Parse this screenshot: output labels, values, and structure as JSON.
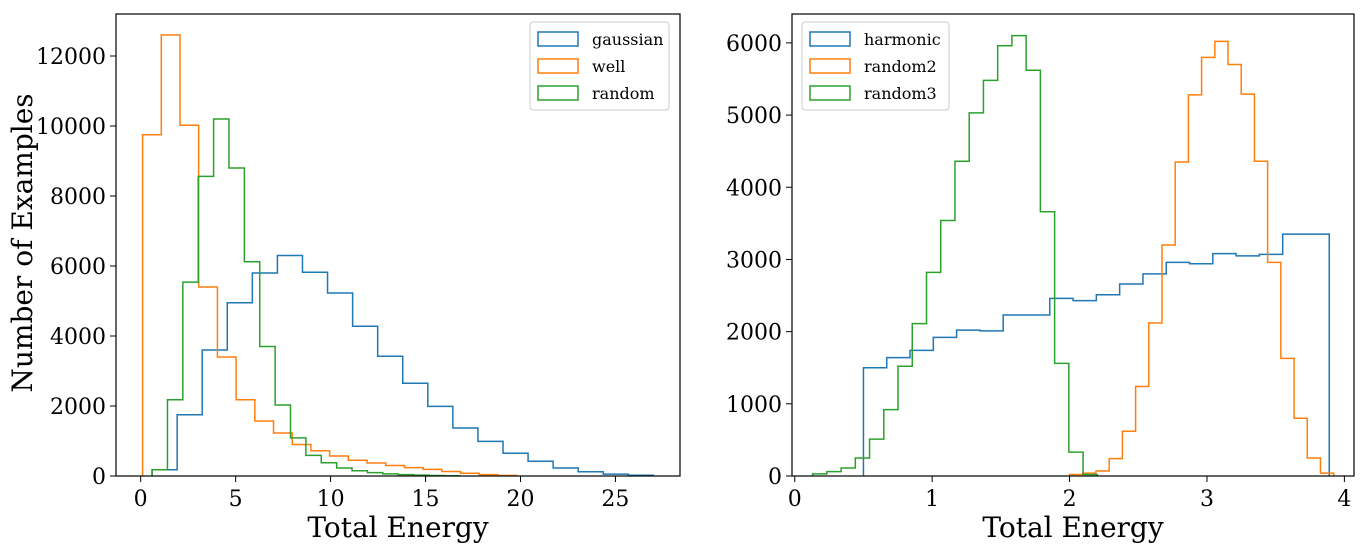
{
  "chart_data": [
    {
      "type": "histogram",
      "xlabel": "Total Energy",
      "ylabel": "Number of Examples",
      "xlim": [
        -1.3,
        28.4
      ],
      "ylim": [
        0,
        13200
      ],
      "xticks": [
        0,
        5,
        10,
        15,
        20,
        25
      ],
      "yticks": [
        0,
        2000,
        4000,
        6000,
        8000,
        10000,
        12000
      ],
      "legend_position": "upper right",
      "series": [
        {
          "name": "gaussian",
          "color": "#1f77b4",
          "bin_start": 0.6,
          "bin_width": 1.32,
          "counts": [
            180,
            1750,
            3600,
            4950,
            5800,
            6300,
            5820,
            5230,
            4280,
            3420,
            2650,
            1990,
            1370,
            990,
            650,
            420,
            230,
            120,
            55,
            20
          ]
        },
        {
          "name": "well",
          "color": "#ff7f0e",
          "bin_start": 0.1,
          "bin_width": 0.985,
          "counts": [
            9750,
            12600,
            10020,
            5400,
            3400,
            2180,
            1570,
            1230,
            900,
            720,
            570,
            450,
            370,
            300,
            240,
            190,
            130,
            80,
            40,
            15
          ]
        },
        {
          "name": "random",
          "color": "#2ca02c",
          "bin_start": 0.6,
          "bin_width": 0.81,
          "counts": [
            180,
            2180,
            5540,
            8560,
            10200,
            8800,
            6120,
            3700,
            2030,
            1090,
            590,
            380,
            230,
            150,
            95,
            60,
            40,
            25,
            15,
            8
          ]
        }
      ]
    },
    {
      "type": "histogram",
      "xlabel": "Total Energy",
      "ylabel": "",
      "xlim": [
        -0.02,
        4.07
      ],
      "ylim": [
        0,
        6400
      ],
      "xticks": [
        0,
        1,
        2,
        3,
        4
      ],
      "yticks": [
        0,
        1000,
        2000,
        3000,
        4000,
        5000,
        6000
      ],
      "legend_position": "upper left",
      "series": [
        {
          "name": "harmonic",
          "color": "#1f77b4",
          "bin_start": 0.5,
          "bin_width": 0.1695,
          "counts": [
            1500,
            1640,
            1740,
            1920,
            2020,
            2010,
            2230,
            2230,
            2460,
            2430,
            2510,
            2660,
            2800,
            2960,
            2940,
            3080,
            3050,
            3070,
            3350,
            3350
          ]
        },
        {
          "name": "random2",
          "color": "#ff7f0e",
          "bin_start": 2.0,
          "bin_width": 0.0961,
          "counts": [
            20,
            40,
            70,
            240,
            620,
            1240,
            2120,
            3200,
            4350,
            5280,
            5800,
            6020,
            5700,
            5290,
            4360,
            2960,
            1630,
            800,
            250,
            40
          ]
        },
        {
          "name": "random3",
          "color": "#2ca02c",
          "bin_start": 0.13,
          "bin_width": 0.1036,
          "counts": [
            30,
            60,
            110,
            250,
            510,
            920,
            1520,
            2110,
            2820,
            3540,
            4360,
            5030,
            5480,
            5960,
            6100,
            5620,
            3660,
            1560,
            330,
            20
          ]
        }
      ]
    }
  ]
}
